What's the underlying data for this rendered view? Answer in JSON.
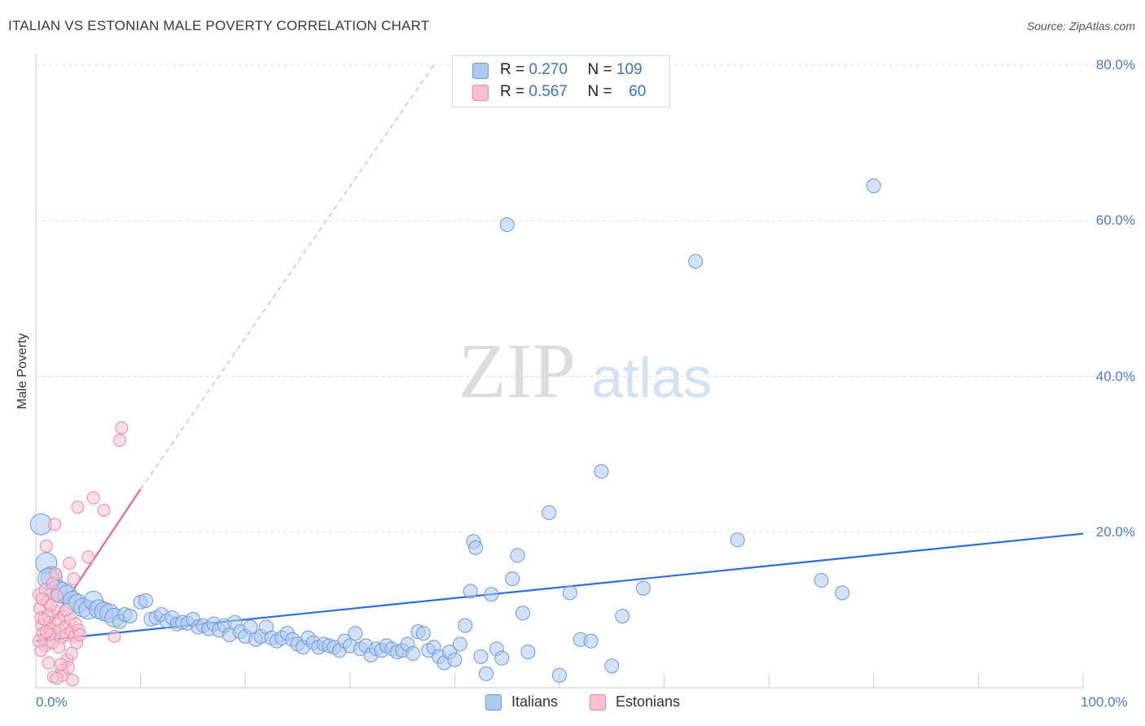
{
  "title": "ITALIAN VS ESTONIAN MALE POVERTY CORRELATION CHART",
  "source": "Source: ZipAtlas.com",
  "watermark": {
    "zip": "ZIP",
    "atlas": "atlas"
  },
  "legend": {
    "rows": [
      {
        "r_label": "R =",
        "r_value": "0.270",
        "n_label": "N =",
        "n_value": "109",
        "fill": "#aec8ee",
        "stroke": "#6d9ad8"
      },
      {
        "r_label": "R =",
        "r_value": "0.567",
        "n_label": "N =",
        "n_value": "60",
        "fill": "#f8c1d2",
        "stroke": "#ea8aa8"
      }
    ]
  },
  "bottom_legend": [
    "Italians",
    "Estonians"
  ],
  "chart_data": {
    "type": "scatter",
    "title": "ITALIAN VS ESTONIAN MALE POVERTY CORRELATION CHART",
    "xlabel": "",
    "ylabel": "Male Poverty",
    "xlim": [
      0,
      100
    ],
    "ylim": [
      0,
      80
    ],
    "x_tick_labels": [
      "0.0%",
      "100.0%"
    ],
    "y_ticks": [
      20,
      40,
      60,
      80
    ],
    "y_tick_labels": [
      "20.0%",
      "40.0%",
      "60.0%",
      "80.0%"
    ],
    "series": [
      {
        "name": "Italians",
        "color": "#6d9ad8",
        "fill": "#aec8ee",
        "trend": {
          "x0": 0,
          "y0": 6.0,
          "x1": 100,
          "y1": 19.8
        },
        "points": [
          [
            0.5,
            21.0
          ],
          [
            1.0,
            16.0
          ],
          [
            1.5,
            14.2
          ],
          [
            2.0,
            12.5
          ],
          [
            2.5,
            12.2
          ],
          [
            3.0,
            12.0
          ],
          [
            3.5,
            11.2
          ],
          [
            4.0,
            10.8
          ],
          [
            4.5,
            10.3
          ],
          [
            5.0,
            10.0
          ],
          [
            5.5,
            11.2
          ],
          [
            6.0,
            10.1
          ],
          [
            6.5,
            9.8
          ],
          [
            7.0,
            9.6
          ],
          [
            7.5,
            9.0
          ],
          [
            8.0,
            8.5
          ],
          [
            8.5,
            9.4
          ],
          [
            9.0,
            9.2
          ],
          [
            10.0,
            11.0
          ],
          [
            10.5,
            11.2
          ],
          [
            11.0,
            8.8
          ],
          [
            11.5,
            9.0
          ],
          [
            12.0,
            9.4
          ],
          [
            12.5,
            8.6
          ],
          [
            13.0,
            9.0
          ],
          [
            13.5,
            8.2
          ],
          [
            14.0,
            8.4
          ],
          [
            14.5,
            8.3
          ],
          [
            15.0,
            8.8
          ],
          [
            15.5,
            7.8
          ],
          [
            16.0,
            8.0
          ],
          [
            16.5,
            7.6
          ],
          [
            17.0,
            8.2
          ],
          [
            17.5,
            7.4
          ],
          [
            18.0,
            8.0
          ],
          [
            18.5,
            6.8
          ],
          [
            19.0,
            8.4
          ],
          [
            19.5,
            7.2
          ],
          [
            20.0,
            6.6
          ],
          [
            20.5,
            7.8
          ],
          [
            21.0,
            6.2
          ],
          [
            21.5,
            6.6
          ],
          [
            22.0,
            7.8
          ],
          [
            22.5,
            6.4
          ],
          [
            23.0,
            6.0
          ],
          [
            23.5,
            6.4
          ],
          [
            24.0,
            7.0
          ],
          [
            24.5,
            6.2
          ],
          [
            25.0,
            5.6
          ],
          [
            25.5,
            5.2
          ],
          [
            26.0,
            6.4
          ],
          [
            26.5,
            5.8
          ],
          [
            27.0,
            5.2
          ],
          [
            27.5,
            5.6
          ],
          [
            28.0,
            5.4
          ],
          [
            28.5,
            5.2
          ],
          [
            29.0,
            4.8
          ],
          [
            29.5,
            6.0
          ],
          [
            30.0,
            5.4
          ],
          [
            30.5,
            7.0
          ],
          [
            31.0,
            5.0
          ],
          [
            31.5,
            5.4
          ],
          [
            32.0,
            4.2
          ],
          [
            32.5,
            5.0
          ],
          [
            33.0,
            4.8
          ],
          [
            33.5,
            5.4
          ],
          [
            34.0,
            5.0
          ],
          [
            34.5,
            4.6
          ],
          [
            35.0,
            4.8
          ],
          [
            35.5,
            5.6
          ],
          [
            36.0,
            4.4
          ],
          [
            36.5,
            7.2
          ],
          [
            37.0,
            7.0
          ],
          [
            37.5,
            4.8
          ],
          [
            38.0,
            5.2
          ],
          [
            38.5,
            4.0
          ],
          [
            39.0,
            3.2
          ],
          [
            39.5,
            4.6
          ],
          [
            40.0,
            3.6
          ],
          [
            40.5,
            5.6
          ],
          [
            41.0,
            8.0
          ],
          [
            41.5,
            12.4
          ],
          [
            41.8,
            18.8
          ],
          [
            42.0,
            18.0
          ],
          [
            42.5,
            4.0
          ],
          [
            43.0,
            1.8
          ],
          [
            43.5,
            12.0
          ],
          [
            44.0,
            5.0
          ],
          [
            44.5,
            3.8
          ],
          [
            45.0,
            59.5
          ],
          [
            45.5,
            14.0
          ],
          [
            46.0,
            17.0
          ],
          [
            46.5,
            9.6
          ],
          [
            47.0,
            4.6
          ],
          [
            49.0,
            22.5
          ],
          [
            50.0,
            1.6
          ],
          [
            51.0,
            12.2
          ],
          [
            52.0,
            6.2
          ],
          [
            53.0,
            6.0
          ],
          [
            54.0,
            27.8
          ],
          [
            55.0,
            2.8
          ],
          [
            56.0,
            9.2
          ],
          [
            58.0,
            12.8
          ],
          [
            63.0,
            54.8
          ],
          [
            67.0,
            19.0
          ],
          [
            75.0,
            13.8
          ],
          [
            77.0,
            12.2
          ],
          [
            80.0,
            64.5
          ],
          [
            1.2,
            14.0
          ]
        ]
      },
      {
        "name": "Estonians",
        "color": "#ea8aa8",
        "fill": "#f8c1d2",
        "trend": {
          "x0": 0.2,
          "y0": 5.8,
          "x1": 10.0,
          "y1": 25.5
        },
        "trend_extended": {
          "x0": 10.0,
          "y0": 25.5,
          "x1": 38.0,
          "y1": 80.0
        },
        "points": [
          [
            0.3,
            12.0
          ],
          [
            0.4,
            10.2
          ],
          [
            0.5,
            9.0
          ],
          [
            0.6,
            8.0
          ],
          [
            0.7,
            7.0
          ],
          [
            0.8,
            6.2
          ],
          [
            0.9,
            5.4
          ],
          [
            1.0,
            18.2
          ],
          [
            1.1,
            11.0
          ],
          [
            1.2,
            9.4
          ],
          [
            1.3,
            8.4
          ],
          [
            1.4,
            7.6
          ],
          [
            1.5,
            6.8
          ],
          [
            1.6,
            5.8
          ],
          [
            1.7,
            1.4
          ],
          [
            1.8,
            21.0
          ],
          [
            1.9,
            14.6
          ],
          [
            2.0,
            11.8
          ],
          [
            2.1,
            9.8
          ],
          [
            2.2,
            8.6
          ],
          [
            2.3,
            7.4
          ],
          [
            2.4,
            6.4
          ],
          [
            2.5,
            2.2
          ],
          [
            2.6,
            1.6
          ],
          [
            2.7,
            9.2
          ],
          [
            2.8,
            7.8
          ],
          [
            2.9,
            6.8
          ],
          [
            3.0,
            3.6
          ],
          [
            3.1,
            2.6
          ],
          [
            3.2,
            16.0
          ],
          [
            3.3,
            8.8
          ],
          [
            3.4,
            7.2
          ],
          [
            3.5,
            1.0
          ],
          [
            3.6,
            14.0
          ],
          [
            3.7,
            6.6
          ],
          [
            3.8,
            8.2
          ],
          [
            3.9,
            5.8
          ],
          [
            4.0,
            23.2
          ],
          [
            4.1,
            7.4
          ],
          [
            4.2,
            6.8
          ],
          [
            5.0,
            16.8
          ],
          [
            5.5,
            24.4
          ],
          [
            6.5,
            22.8
          ],
          [
            7.5,
            6.6
          ],
          [
            8.0,
            31.8
          ],
          [
            8.2,
            33.4
          ],
          [
            0.5,
            4.8
          ],
          [
            0.9,
            12.6
          ],
          [
            1.4,
            10.6
          ],
          [
            2.4,
            3.0
          ],
          [
            0.3,
            6.0
          ],
          [
            0.8,
            8.8
          ],
          [
            1.6,
            13.4
          ],
          [
            2.2,
            5.2
          ],
          [
            2.9,
            10.0
          ],
          [
            3.4,
            4.4
          ],
          [
            1.2,
            3.2
          ],
          [
            2.0,
            1.2
          ],
          [
            0.6,
            11.4
          ],
          [
            1.0,
            7.2
          ]
        ]
      }
    ]
  }
}
